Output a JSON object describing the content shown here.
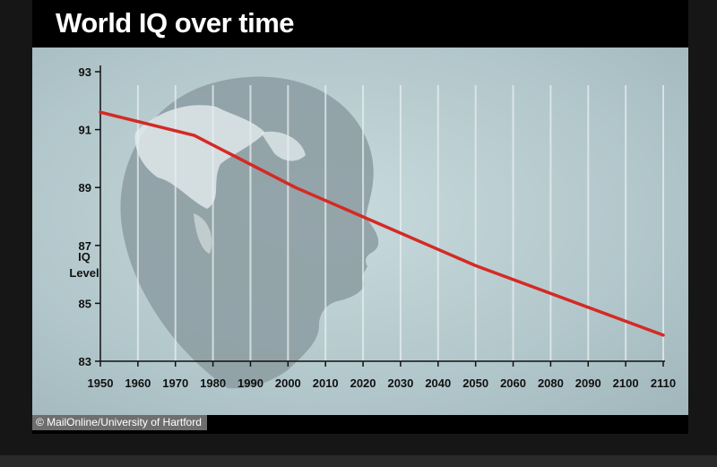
{
  "header": {
    "title": "World IQ over time"
  },
  "credit": "© MailOnline/University of Hartford",
  "colors": {
    "line": "#d42a24",
    "background": "#b4cacd",
    "silhouette": "#8a9aa0",
    "gridline": "#e8eef0",
    "axis": "#111111"
  },
  "chart_data": {
    "type": "line",
    "title": "World IQ over time",
    "ylabel": "IQ\nLevel",
    "xlabel": "",
    "x_categories": [
      "1950",
      "1960",
      "1970",
      "1980",
      "1990",
      "2000",
      "2010",
      "2020",
      "2030",
      "2040",
      "2050",
      "2060",
      "2080",
      "2090",
      "2100",
      "2110"
    ],
    "y_ticks": [
      93,
      91,
      89,
      87,
      85,
      83
    ],
    "ylim": [
      83,
      93
    ],
    "grid": "vertical",
    "series": [
      {
        "x": [
          "1950",
          "1975",
          "2002",
          "2050",
          "2110"
        ],
        "values": [
          91.6,
          90.8,
          89.0,
          86.3,
          83.9
        ]
      }
    ]
  }
}
